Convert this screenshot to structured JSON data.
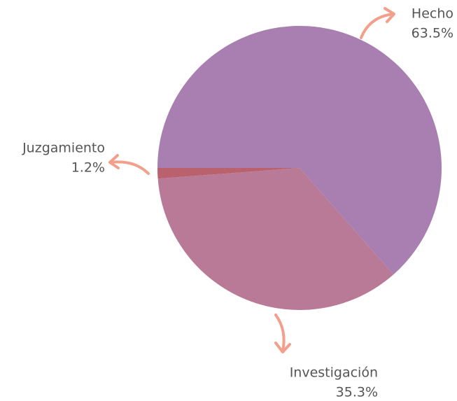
{
  "chart_data": {
    "type": "pie",
    "categories": [
      "Hecho",
      "Investigación",
      "Juzgamiento"
    ],
    "values": [
      63.5,
      35.3,
      1.2
    ],
    "value_labels": [
      "63.5%",
      "35.3%",
      "1.2%"
    ],
    "colors": [
      "#a87fb0",
      "#b97a98",
      "#b9626e"
    ]
  }
}
